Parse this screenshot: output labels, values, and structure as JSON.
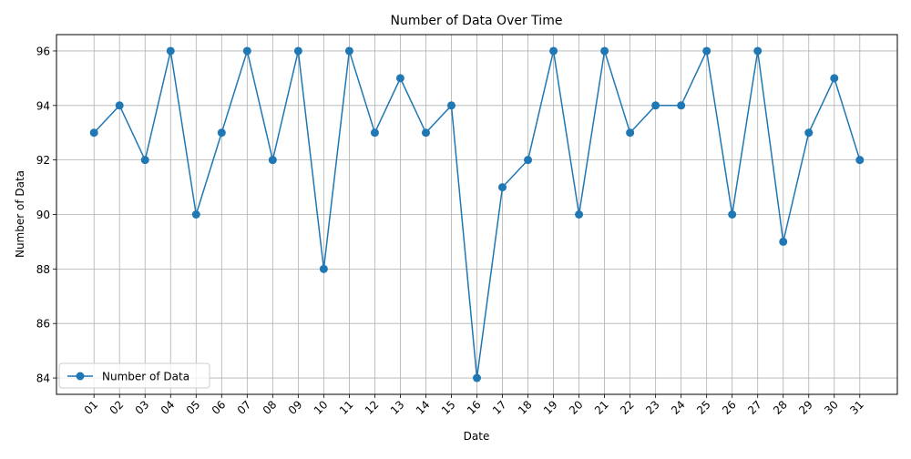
{
  "chart_data": {
    "type": "line",
    "title": "Number of Data Over Time",
    "xlabel": "Date",
    "ylabel": "Number of Data",
    "categories": [
      "01",
      "02",
      "03",
      "04",
      "05",
      "06",
      "07",
      "08",
      "09",
      "10",
      "11",
      "12",
      "13",
      "14",
      "15",
      "16",
      "17",
      "18",
      "19",
      "20",
      "21",
      "22",
      "23",
      "24",
      "25",
      "26",
      "27",
      "28",
      "29",
      "30",
      "31"
    ],
    "series": [
      {
        "name": "Number of Data",
        "color": "#1f77b4",
        "values": [
          93,
          94,
          92,
          96,
          90,
          93,
          96,
          92,
          96,
          88,
          96,
          93,
          95,
          93,
          94,
          84,
          91,
          92,
          96,
          90,
          96,
          93,
          94,
          94,
          96,
          90,
          96,
          89,
          93,
          95,
          92
        ]
      }
    ],
    "yticks": [
      84,
      86,
      88,
      90,
      92,
      94,
      96
    ],
    "ylim": [
      83.4,
      96.6
    ],
    "grid": true,
    "legend_position": "lower-left",
    "tick_label_rotation": 45
  }
}
